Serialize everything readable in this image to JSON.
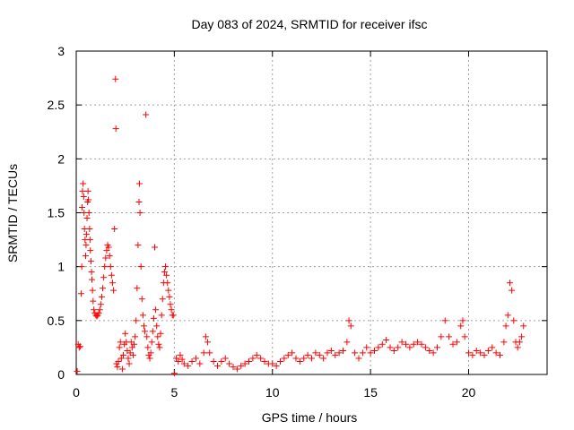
{
  "chart_data": {
    "type": "scatter",
    "title": "Day 083 of 2024, SRMTID for receiver ifsc",
    "xlabel": "GPS time / hours",
    "ylabel": "SRMTID / TECUs",
    "xlim": [
      0,
      24
    ],
    "ylim": [
      0,
      3
    ],
    "xticks": [
      0,
      5,
      10,
      15,
      20
    ],
    "yticks": [
      0,
      0.5,
      1,
      1.5,
      2,
      2.5,
      3
    ],
    "grid": true,
    "marker": "+",
    "series": [
      {
        "name": "SRMTID",
        "color": "#ff0000",
        "points": [
          [
            0.05,
            0.03
          ],
          [
            0.1,
            0.28
          ],
          [
            0.15,
            0.25
          ],
          [
            0.2,
            0.26
          ],
          [
            0.25,
            0.75
          ],
          [
            0.28,
            1.0
          ],
          [
            0.3,
            1.55
          ],
          [
            0.32,
            1.7
          ],
          [
            0.35,
            1.77
          ],
          [
            0.38,
            1.65
          ],
          [
            0.4,
            1.5
          ],
          [
            0.42,
            1.35
          ],
          [
            0.45,
            1.25
          ],
          [
            0.48,
            1.1
          ],
          [
            0.5,
            1.2
          ],
          [
            0.52,
            1.3
          ],
          [
            0.55,
            1.45
          ],
          [
            0.58,
            1.6
          ],
          [
            0.6,
            1.7
          ],
          [
            0.62,
            1.62
          ],
          [
            0.65,
            1.5
          ],
          [
            0.68,
            1.35
          ],
          [
            0.7,
            1.25
          ],
          [
            0.72,
            1.15
          ],
          [
            0.75,
            1.05
          ],
          [
            0.78,
            0.95
          ],
          [
            0.8,
            0.88
          ],
          [
            0.83,
            0.78
          ],
          [
            0.86,
            0.68
          ],
          [
            0.9,
            0.6
          ],
          [
            0.95,
            0.57
          ],
          [
            1.0,
            0.55
          ],
          [
            1.05,
            0.54
          ],
          [
            1.1,
            0.55
          ],
          [
            1.15,
            0.57
          ],
          [
            1.2,
            0.6
          ],
          [
            1.25,
            0.65
          ],
          [
            1.3,
            0.72
          ],
          [
            1.35,
            0.8
          ],
          [
            1.4,
            0.9
          ],
          [
            1.45,
            1.0
          ],
          [
            1.5,
            1.08
          ],
          [
            1.55,
            1.15
          ],
          [
            1.6,
            1.2
          ],
          [
            1.65,
            1.18
          ],
          [
            1.7,
            1.1
          ],
          [
            1.75,
            1.0
          ],
          [
            1.8,
            0.92
          ],
          [
            1.85,
            0.85
          ],
          [
            1.9,
            0.78
          ],
          [
            1.95,
            1.35
          ],
          [
            2.0,
            2.74
          ],
          [
            2.02,
            2.28
          ],
          [
            2.05,
            0.1
          ],
          [
            2.1,
            0.07
          ],
          [
            2.15,
            0.12
          ],
          [
            2.2,
            0.25
          ],
          [
            2.25,
            0.3
          ],
          [
            2.3,
            0.15
          ],
          [
            2.35,
            0.05
          ],
          [
            2.4,
            0.18
          ],
          [
            2.45,
            0.28
          ],
          [
            2.5,
            0.38
          ],
          [
            2.55,
            0.3
          ],
          [
            2.6,
            0.22
          ],
          [
            2.65,
            0.15
          ],
          [
            2.7,
            0.1
          ],
          [
            2.75,
            0.2
          ],
          [
            2.8,
            0.3
          ],
          [
            2.85,
            0.25
          ],
          [
            2.9,
            0.18
          ],
          [
            2.95,
            0.28
          ],
          [
            3.0,
            0.35
          ],
          [
            3.05,
            0.5
          ],
          [
            3.1,
            0.8
          ],
          [
            3.15,
            1.2
          ],
          [
            3.2,
            1.6
          ],
          [
            3.22,
            1.77
          ],
          [
            3.25,
            1.5
          ],
          [
            3.3,
            1.0
          ],
          [
            3.35,
            0.7
          ],
          [
            3.4,
            0.55
          ],
          [
            3.45,
            0.45
          ],
          [
            3.5,
            0.4
          ],
          [
            3.55,
            2.41
          ],
          [
            3.6,
            0.35
          ],
          [
            3.65,
            0.25
          ],
          [
            3.7,
            0.18
          ],
          [
            3.75,
            0.15
          ],
          [
            3.8,
            0.2
          ],
          [
            3.85,
            0.3
          ],
          [
            3.9,
            0.4
          ],
          [
            3.95,
            0.52
          ],
          [
            4.0,
            1.18
          ],
          [
            4.05,
            0.6
          ],
          [
            4.1,
            0.45
          ],
          [
            4.15,
            0.35
          ],
          [
            4.2,
            0.28
          ],
          [
            4.25,
            0.25
          ],
          [
            4.3,
            0.38
          ],
          [
            4.35,
            0.55
          ],
          [
            4.4,
            0.7
          ],
          [
            4.45,
            0.85
          ],
          [
            4.5,
            0.95
          ],
          [
            4.55,
            1.0
          ],
          [
            4.6,
            0.92
          ],
          [
            4.65,
            0.85
          ],
          [
            4.7,
            0.78
          ],
          [
            4.75,
            0.72
          ],
          [
            4.8,
            0.65
          ],
          [
            4.85,
            0.6
          ],
          [
            4.9,
            0.55
          ],
          [
            4.95,
            0.55
          ],
          [
            5.0,
            0.01
          ],
          [
            5.1,
            0.15
          ],
          [
            5.2,
            0.12
          ],
          [
            5.3,
            0.18
          ],
          [
            5.4,
            0.14
          ],
          [
            5.5,
            0.1
          ],
          [
            5.7,
            0.08
          ],
          [
            5.9,
            0.12
          ],
          [
            6.1,
            0.15
          ],
          [
            6.3,
            0.1
          ],
          [
            6.5,
            0.2
          ],
          [
            6.6,
            0.35
          ],
          [
            6.7,
            0.3
          ],
          [
            6.8,
            0.2
          ],
          [
            7.0,
            0.12
          ],
          [
            7.2,
            0.08
          ],
          [
            7.4,
            0.12
          ],
          [
            7.6,
            0.15
          ],
          [
            7.8,
            0.1
          ],
          [
            8.0,
            0.07
          ],
          [
            8.2,
            0.05
          ],
          [
            8.4,
            0.08
          ],
          [
            8.6,
            0.1
          ],
          [
            8.8,
            0.12
          ],
          [
            9.0,
            0.15
          ],
          [
            9.2,
            0.18
          ],
          [
            9.4,
            0.15
          ],
          [
            9.6,
            0.12
          ],
          [
            9.8,
            0.1
          ],
          [
            10.0,
            0.1
          ],
          [
            10.2,
            0.08
          ],
          [
            10.4,
            0.12
          ],
          [
            10.6,
            0.15
          ],
          [
            10.8,
            0.18
          ],
          [
            11.0,
            0.2
          ],
          [
            11.2,
            0.15
          ],
          [
            11.4,
            0.12
          ],
          [
            11.6,
            0.15
          ],
          [
            11.8,
            0.18
          ],
          [
            12.0,
            0.15
          ],
          [
            12.2,
            0.2
          ],
          [
            12.4,
            0.18
          ],
          [
            12.6,
            0.15
          ],
          [
            12.8,
            0.2
          ],
          [
            13.0,
            0.22
          ],
          [
            13.2,
            0.18
          ],
          [
            13.4,
            0.2
          ],
          [
            13.6,
            0.22
          ],
          [
            13.8,
            0.3
          ],
          [
            13.9,
            0.5
          ],
          [
            14.0,
            0.45
          ],
          [
            14.2,
            0.2
          ],
          [
            14.4,
            0.15
          ],
          [
            14.6,
            0.2
          ],
          [
            14.8,
            0.25
          ],
          [
            15.0,
            0.2
          ],
          [
            15.2,
            0.22
          ],
          [
            15.4,
            0.25
          ],
          [
            15.6,
            0.28
          ],
          [
            15.8,
            0.32
          ],
          [
            16.0,
            0.25
          ],
          [
            16.2,
            0.22
          ],
          [
            16.4,
            0.25
          ],
          [
            16.6,
            0.3
          ],
          [
            16.8,
            0.28
          ],
          [
            17.0,
            0.25
          ],
          [
            17.2,
            0.28
          ],
          [
            17.4,
            0.3
          ],
          [
            17.6,
            0.28
          ],
          [
            17.8,
            0.25
          ],
          [
            18.0,
            0.22
          ],
          [
            18.2,
            0.2
          ],
          [
            18.4,
            0.25
          ],
          [
            18.6,
            0.35
          ],
          [
            18.8,
            0.5
          ],
          [
            19.0,
            0.35
          ],
          [
            19.2,
            0.28
          ],
          [
            19.4,
            0.3
          ],
          [
            19.6,
            0.45
          ],
          [
            19.7,
            0.5
          ],
          [
            19.8,
            0.35
          ],
          [
            20.0,
            0.2
          ],
          [
            20.2,
            0.18
          ],
          [
            20.4,
            0.22
          ],
          [
            20.6,
            0.2
          ],
          [
            20.8,
            0.18
          ],
          [
            21.0,
            0.22
          ],
          [
            21.2,
            0.25
          ],
          [
            21.4,
            0.2
          ],
          [
            21.6,
            0.18
          ],
          [
            21.8,
            0.3
          ],
          [
            21.9,
            0.45
          ],
          [
            22.0,
            0.55
          ],
          [
            22.1,
            0.85
          ],
          [
            22.2,
            0.78
          ],
          [
            22.3,
            0.5
          ],
          [
            22.4,
            0.3
          ],
          [
            22.5,
            0.25
          ],
          [
            22.6,
            0.3
          ],
          [
            22.7,
            0.35
          ],
          [
            22.8,
            0.45
          ]
        ]
      }
    ]
  }
}
